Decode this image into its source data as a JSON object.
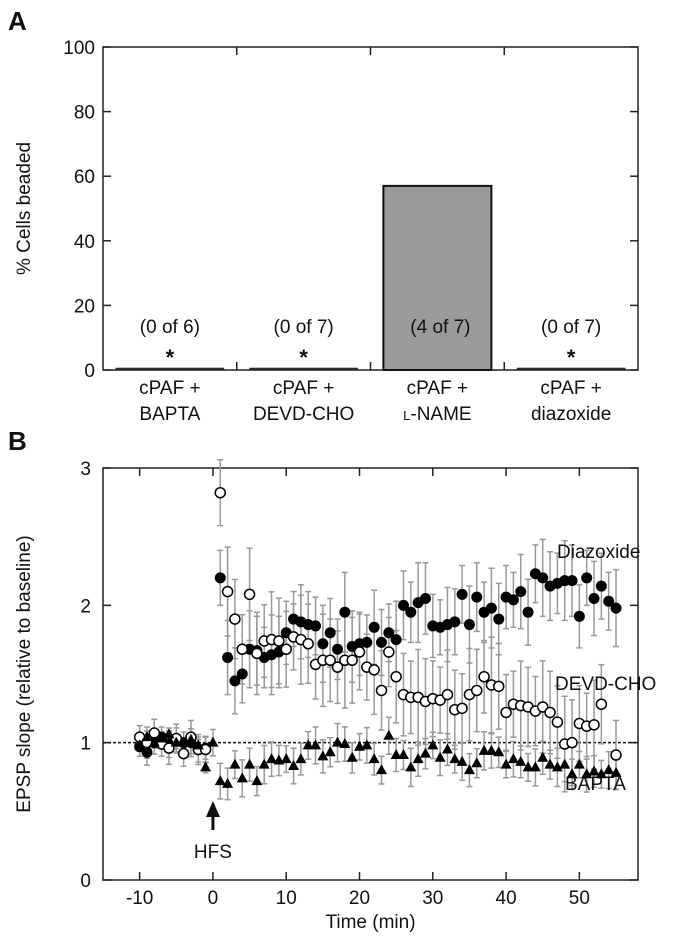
{
  "chart_data": [
    {
      "panel": "A",
      "type": "bar",
      "ylabel": "% Cells beaded",
      "xlabel": "",
      "ylim": [
        0,
        100
      ],
      "yticks": [
        "0",
        "20",
        "40",
        "60",
        "80",
        "100"
      ],
      "categories": [
        [
          "cPAF +",
          "BAPTA"
        ],
        [
          "cPAF +",
          "DEVD-CHO"
        ],
        [
          "cPAF +",
          "L-NAME"
        ],
        [
          "cPAF +",
          "diazoxide"
        ]
      ],
      "values": [
        0,
        0,
        57,
        0
      ],
      "annotations": [
        "(0 of 6)",
        "(0 of 7)",
        "(4 of 7)",
        "(0 of 7)"
      ],
      "significance": [
        "*",
        "*",
        "",
        "*"
      ],
      "bar_color": "#9a9a9a"
    },
    {
      "panel": "B",
      "type": "scatter",
      "xlabel": "Time (min)",
      "ylabel": "EPSP slope (relative to baseline)",
      "xlim": [
        -15,
        58
      ],
      "ylim": [
        0,
        3
      ],
      "xticks": [
        "-10",
        "0",
        "10",
        "20",
        "30",
        "40",
        "50"
      ],
      "yticks": [
        "0",
        "1",
        "2",
        "3"
      ],
      "reference_line": 1,
      "event_label": "HFS",
      "event_time": 0,
      "error_bar_color": "#999999",
      "series": [
        {
          "name": "Diazoxide",
          "marker": "filled-circle",
          "approx_sem": 0.25,
          "x": [
            -10,
            -9,
            -8,
            -7,
            -6,
            -5,
            -4,
            -3,
            -2,
            -1,
            1,
            2,
            3,
            4,
            5,
            6,
            7,
            8,
            9,
            10,
            11,
            12,
            13,
            14,
            15,
            16,
            17,
            18,
            19,
            20,
            21,
            22,
            23,
            24,
            25,
            26,
            27,
            28,
            29,
            30,
            31,
            32,
            33,
            34,
            35,
            36,
            37,
            38,
            39,
            40,
            41,
            42,
            43,
            44,
            45,
            46,
            47,
            48,
            49,
            50,
            51,
            52,
            53,
            54,
            55
          ],
          "y": [
            0.97,
            0.93,
            1.0,
            1.04,
            0.99,
            1.02,
            1.0,
            1.0,
            0.95,
            0.96,
            2.2,
            1.62,
            1.45,
            1.5,
            1.68,
            1.67,
            1.62,
            1.64,
            1.66,
            1.8,
            1.9,
            1.88,
            1.86,
            1.85,
            1.72,
            1.8,
            1.68,
            1.95,
            1.7,
            1.72,
            1.73,
            1.84,
            1.73,
            1.8,
            1.75,
            2.0,
            1.95,
            2.02,
            2.05,
            1.85,
            1.84,
            1.86,
            1.88,
            2.08,
            1.86,
            2.06,
            1.95,
            1.98,
            1.9,
            2.06,
            2.04,
            2.1,
            1.95,
            2.23,
            2.2,
            2.14,
            2.16,
            2.18,
            2.18,
            1.92,
            2.2,
            2.05,
            2.14,
            2.03,
            1.98
          ]
        },
        {
          "name": "DEVD-CHO",
          "marker": "open-circle",
          "approx_sem": 0.3,
          "x": [
            -10,
            -9,
            -8,
            -7,
            -6,
            -5,
            -4,
            -3,
            -2,
            -1,
            1,
            2,
            3,
            4,
            5,
            6,
            7,
            8,
            9,
            10,
            11,
            12,
            13,
            14,
            15,
            16,
            17,
            18,
            19,
            20,
            21,
            22,
            23,
            24,
            25,
            26,
            27,
            28,
            29,
            30,
            31,
            32,
            33,
            34,
            35,
            36,
            37,
            38,
            39,
            40,
            41,
            42,
            43,
            44,
            45,
            46,
            47,
            48,
            49,
            50,
            51,
            52,
            53,
            55
          ],
          "y": [
            1.04,
            1.0,
            1.07,
            0.99,
            0.96,
            1.03,
            0.92,
            1.04,
            0.95,
            0.95,
            2.82,
            2.1,
            1.9,
            1.68,
            2.08,
            1.65,
            1.74,
            1.75,
            1.74,
            1.68,
            1.77,
            1.75,
            1.72,
            1.57,
            1.6,
            1.6,
            1.55,
            1.6,
            1.6,
            1.66,
            1.55,
            1.53,
            1.38,
            1.66,
            1.48,
            1.35,
            1.33,
            1.33,
            1.3,
            1.32,
            1.31,
            1.35,
            1.24,
            1.25,
            1.35,
            1.38,
            1.48,
            1.42,
            1.41,
            1.22,
            1.28,
            1.27,
            1.26,
            1.23,
            1.26,
            1.22,
            1.15,
            0.99,
            1.0,
            1.14,
            1.12,
            1.13,
            1.28,
            0.91
          ]
        },
        {
          "name": "BAPTA",
          "marker": "filled-triangle",
          "approx_sem": 0.12,
          "x": [
            -10,
            -9,
            -8,
            -7,
            -6,
            -5,
            -4,
            -3,
            -2,
            -1,
            0,
            1,
            2,
            3,
            4,
            5,
            6,
            7,
            8,
            9,
            10,
            11,
            12,
            13,
            14,
            15,
            16,
            17,
            18,
            19,
            20,
            21,
            22,
            23,
            24,
            25,
            26,
            27,
            28,
            29,
            30,
            31,
            32,
            33,
            34,
            35,
            36,
            37,
            38,
            39,
            40,
            41,
            42,
            43,
            44,
            45,
            46,
            47,
            48,
            49,
            50,
            51,
            52,
            53,
            54,
            55
          ],
          "y": [
            0.98,
            1.04,
            1.0,
            1.03,
            1.06,
            1.0,
            1.0,
            1.02,
            0.98,
            0.82,
            1.0,
            0.72,
            0.7,
            0.84,
            0.74,
            0.84,
            0.72,
            0.84,
            0.88,
            0.87,
            0.88,
            0.83,
            0.88,
            0.98,
            0.98,
            0.9,
            0.93,
            1.0,
            0.99,
            0.89,
            0.97,
            0.98,
            0.88,
            0.8,
            1.05,
            0.91,
            0.91,
            0.82,
            0.88,
            0.92,
            0.98,
            0.89,
            0.95,
            0.88,
            0.86,
            0.8,
            0.85,
            0.94,
            0.94,
            0.93,
            0.84,
            0.88,
            0.86,
            0.82,
            0.82,
            0.89,
            0.84,
            0.82,
            0.84,
            0.77,
            0.84,
            0.77,
            0.79,
            0.77,
            0.8,
            0.78
          ]
        }
      ]
    }
  ],
  "panel_labels": [
    "A",
    "B"
  ]
}
